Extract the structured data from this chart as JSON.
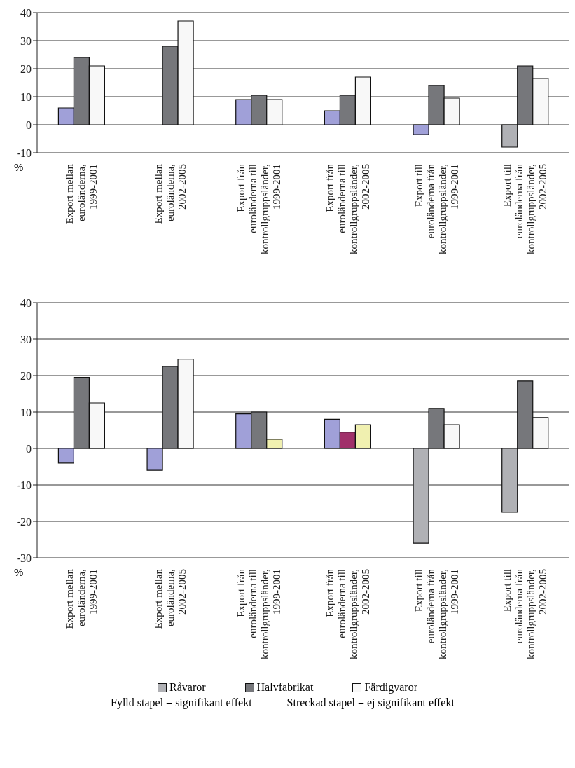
{
  "chart_data": [
    {
      "type": "bar",
      "ylabel": "%",
      "categories": [
        "Export mellan euroländerna, 1999-2001",
        "Export mellan euroländerna, 2002-2005",
        "Export från euroländerna till kontrollgruppsländer, 1999-2001",
        "Export från euroländerna till kontrollgruppsländer, 2002-2005",
        "Export till euroländerna från kontrollgruppsländer, 1999-2001",
        "Export till euroländerna från kontrollgruppsländer, 2002-2005"
      ],
      "series": [
        {
          "color": "#b0b1b5",
          "colors": [
            "#a0a0d8",
            "#a0a0d8",
            "#a0a0d8",
            "#a0a0d8",
            "#a0a0d8",
            "#b0b1b5"
          ],
          "values": [
            6,
            null,
            9,
            5,
            -3.5,
            -8
          ]
        },
        {
          "color": "#76777b",
          "values": [
            24,
            28,
            10.5,
            10.5,
            14,
            21
          ]
        },
        {
          "color": "#f8f8f8",
          "values": [
            21,
            37,
            9,
            17,
            9.5,
            16.5
          ]
        }
      ],
      "ylim": [
        -10,
        40
      ],
      "yticks": [
        -10,
        0,
        10,
        20,
        30,
        40
      ],
      "grid": "y"
    },
    {
      "type": "bar",
      "ylabel": "%",
      "categories": [
        "Export mellan euroländerna, 1999-2001",
        "Export mellan euroländerna, 2002-2005",
        "Export från euroländerna till kontrollgruppsländer, 1999-2001",
        "Export från euroländerna till kontrollgruppsländer, 2002-2005",
        "Export till euroländerna från kontrollgruppsländer, 1999-2001",
        "Export till euroländerna från kontrollgruppsländer, 2002-2005"
      ],
      "series": [
        {
          "name": "Råvaror",
          "color": "#b0b1b5",
          "colors": [
            "#a0a0d8",
            "#a0a0d8",
            "#a0a0d8",
            "#a0a0d8",
            "#b0b1b5",
            "#b0b1b5"
          ],
          "values": [
            -4,
            -6,
            9.5,
            8,
            -26,
            -17.5
          ]
        },
        {
          "name": "Halvfabrikat",
          "color": "#76777b",
          "colors": [
            "#76777b",
            "#76777b",
            "#76777b",
            "#a0306a",
            "#76777b",
            "#76777b"
          ],
          "values": [
            19.5,
            22.5,
            10,
            4.5,
            11,
            18.5
          ]
        },
        {
          "name": "Färdigvaror",
          "color": "#f8f8f8",
          "colors": [
            "#f8f8f8",
            "#f8f8f8",
            "#f0f0b0",
            "#f0f0b0",
            "#f8f8f8",
            "#f8f8f8"
          ],
          "values": [
            12.5,
            24.5,
            2.5,
            6.5,
            6.5,
            8.5
          ]
        }
      ],
      "ylim": [
        -30,
        40
      ],
      "yticks": [
        -30,
        -20,
        -10,
        0,
        10,
        20,
        30,
        40
      ],
      "grid": "y",
      "legend": "bottom",
      "annotations": [
        "Fylld stapel = signifikant effekt",
        "Streckad stapel = ej signifikant effekt"
      ]
    }
  ]
}
